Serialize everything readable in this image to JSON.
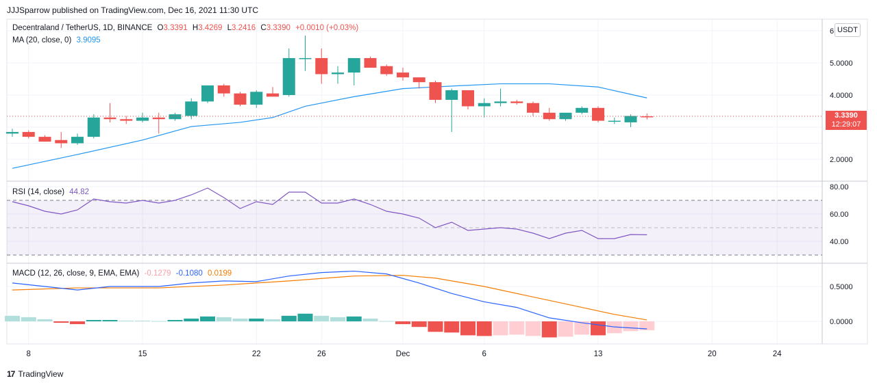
{
  "header": {
    "published": "JJJSparrow published on TradingView.com, Dec 16, 2021 11:30 UTC"
  },
  "footer": {
    "brand": "TradingView",
    "logo_glyph": "17"
  },
  "legend_main": {
    "symbol": "Decentraland / TetherUS, 1D, BINANCE",
    "o_label": "O",
    "o_val": "3.3391",
    "h_label": "H",
    "h_val": "3.4269",
    "l_label": "L",
    "l_val": "3.2416",
    "c_label": "C",
    "c_val": "3.3390",
    "change": "+0.0010 (+0.03%)",
    "ma_label": "MA (20, close, 0)",
    "ma_val": "3.9095"
  },
  "legend_rsi": {
    "label": "RSI (14, close)",
    "value": "44.82"
  },
  "legend_macd": {
    "label": "MACD (12, 26, close, 9, EMA, EMA)",
    "hist": "-0.1279",
    "macd": "-0.1080",
    "signal": "0.0199"
  },
  "currency": "USDT",
  "price_tag": {
    "price": "3.3390",
    "countdown": "12:29:07"
  },
  "colors": {
    "up": "#26a69a",
    "down": "#ef5350",
    "ma": "#2196f3",
    "rsi": "#7e57c2",
    "signal": "#f57c00",
    "hist_up_strong": "#26a69a",
    "hist_up_weak": "#b2dfdb",
    "hist_down_strong": "#ef5350",
    "hist_down_weak": "#ffcdd2"
  },
  "chart_data": [
    {
      "type": "candlestick",
      "series_name": "Decentraland / TetherUS",
      "x_labels": [
        "8",
        "15",
        "22",
        "26",
        "Dec",
        "6",
        "13",
        "20",
        "24"
      ],
      "x_label_days": [
        8,
        15,
        22,
        26,
        31,
        36,
        43,
        50,
        54
      ],
      "y_ticks": [
        2.0,
        4.0,
        5.0,
        6.0
      ],
      "y_tick_labels": [
        "2.0000",
        "4.0000",
        "5.0000",
        "6"
      ],
      "candles": [
        {
          "d": 7,
          "o": 2.8,
          "h": 2.95,
          "l": 2.7,
          "c": 2.85
        },
        {
          "d": 8,
          "o": 2.85,
          "h": 2.9,
          "l": 2.65,
          "c": 2.7
        },
        {
          "d": 9,
          "o": 2.7,
          "h": 2.75,
          "l": 2.55,
          "c": 2.55
        },
        {
          "d": 10,
          "o": 2.6,
          "h": 2.85,
          "l": 2.35,
          "c": 2.5
        },
        {
          "d": 11,
          "o": 2.5,
          "h": 2.8,
          "l": 2.45,
          "c": 2.7
        },
        {
          "d": 12,
          "o": 2.7,
          "h": 3.4,
          "l": 2.65,
          "c": 3.3
        },
        {
          "d": 13,
          "o": 3.3,
          "h": 3.75,
          "l": 3.15,
          "c": 3.25
        },
        {
          "d": 14,
          "o": 3.25,
          "h": 3.35,
          "l": 3.1,
          "c": 3.2
        },
        {
          "d": 15,
          "o": 3.2,
          "h": 3.45,
          "l": 3.15,
          "c": 3.3
        },
        {
          "d": 16,
          "o": 3.3,
          "h": 3.45,
          "l": 2.8,
          "c": 3.25
        },
        {
          "d": 17,
          "o": 3.25,
          "h": 3.45,
          "l": 3.2,
          "c": 3.4
        },
        {
          "d": 18,
          "o": 3.35,
          "h": 3.9,
          "l": 3.25,
          "c": 3.8
        },
        {
          "d": 19,
          "o": 3.8,
          "h": 4.3,
          "l": 3.75,
          "c": 4.3
        },
        {
          "d": 20,
          "o": 4.3,
          "h": 4.35,
          "l": 3.95,
          "c": 4.05
        },
        {
          "d": 21,
          "o": 4.05,
          "h": 4.1,
          "l": 3.65,
          "c": 3.7
        },
        {
          "d": 22,
          "o": 3.7,
          "h": 4.15,
          "l": 3.6,
          "c": 4.1
        },
        {
          "d": 23,
          "o": 4.05,
          "h": 4.25,
          "l": 3.95,
          "c": 3.95
        },
        {
          "d": 24,
          "o": 4.0,
          "h": 5.45,
          "l": 3.95,
          "c": 5.15
        },
        {
          "d": 25,
          "o": 5.15,
          "h": 5.85,
          "l": 4.75,
          "c": 5.15
        },
        {
          "d": 26,
          "o": 5.15,
          "h": 5.45,
          "l": 4.35,
          "c": 4.65
        },
        {
          "d": 27,
          "o": 4.65,
          "h": 4.9,
          "l": 4.35,
          "c": 4.7
        },
        {
          "d": 28,
          "o": 4.7,
          "h": 5.15,
          "l": 4.3,
          "c": 5.15
        },
        {
          "d": 29,
          "o": 5.15,
          "h": 5.2,
          "l": 4.85,
          "c": 4.85
        },
        {
          "d": 30,
          "o": 4.9,
          "h": 4.95,
          "l": 4.6,
          "c": 4.65
        },
        {
          "d": 31,
          "o": 4.7,
          "h": 4.85,
          "l": 4.45,
          "c": 4.55
        },
        {
          "d": 32,
          "o": 4.55,
          "h": 4.55,
          "l": 4.2,
          "c": 4.4
        },
        {
          "d": 33,
          "o": 4.4,
          "h": 4.45,
          "l": 3.75,
          "c": 3.85
        },
        {
          "d": 34,
          "o": 3.85,
          "h": 4.2,
          "l": 2.85,
          "c": 4.15
        },
        {
          "d": 35,
          "o": 4.15,
          "h": 4.15,
          "l": 3.55,
          "c": 3.65
        },
        {
          "d": 36,
          "o": 3.65,
          "h": 3.9,
          "l": 3.3,
          "c": 3.75
        },
        {
          "d": 37,
          "o": 3.75,
          "h": 4.2,
          "l": 3.65,
          "c": 3.8
        },
        {
          "d": 38,
          "o": 3.8,
          "h": 3.85,
          "l": 3.7,
          "c": 3.75
        },
        {
          "d": 39,
          "o": 3.75,
          "h": 3.8,
          "l": 3.35,
          "c": 3.45
        },
        {
          "d": 40,
          "o": 3.45,
          "h": 3.6,
          "l": 3.2,
          "c": 3.25
        },
        {
          "d": 41,
          "o": 3.25,
          "h": 3.45,
          "l": 3.2,
          "c": 3.45
        },
        {
          "d": 42,
          "o": 3.45,
          "h": 3.65,
          "l": 3.4,
          "c": 3.6
        },
        {
          "d": 43,
          "o": 3.6,
          "h": 3.65,
          "l": 3.15,
          "c": 3.2
        },
        {
          "d": 44,
          "o": 3.2,
          "h": 3.3,
          "l": 3.1,
          "c": 3.2
        },
        {
          "d": 45,
          "o": 3.15,
          "h": 3.4,
          "l": 3.0,
          "c": 3.35
        },
        {
          "d": 46,
          "o": 3.3391,
          "h": 3.4269,
          "l": 3.2416,
          "c": 3.339
        }
      ],
      "ma20": [
        {
          "d": 7,
          "v": 1.72
        },
        {
          "d": 11,
          "v": 2.15
        },
        {
          "d": 15,
          "v": 2.6
        },
        {
          "d": 18,
          "v": 3.02
        },
        {
          "d": 21,
          "v": 3.15
        },
        {
          "d": 23,
          "v": 3.3
        },
        {
          "d": 25,
          "v": 3.65
        },
        {
          "d": 28,
          "v": 3.95
        },
        {
          "d": 31,
          "v": 4.2
        },
        {
          "d": 34,
          "v": 4.28
        },
        {
          "d": 37,
          "v": 4.35
        },
        {
          "d": 40,
          "v": 4.35
        },
        {
          "d": 43,
          "v": 4.25
        },
        {
          "d": 46,
          "v": 3.91
        }
      ],
      "last_price": 3.339
    },
    {
      "type": "line",
      "series_name": "RSI (14, close)",
      "y_ticks": [
        40.0,
        60.0,
        80.0
      ],
      "y_tick_labels": [
        "40.00",
        "60.00",
        "80.00"
      ],
      "bands": [
        30,
        50,
        70
      ],
      "values": [
        {
          "d": 7,
          "v": 69
        },
        {
          "d": 8,
          "v": 66
        },
        {
          "d": 9,
          "v": 62
        },
        {
          "d": 10,
          "v": 60
        },
        {
          "d": 11,
          "v": 63
        },
        {
          "d": 12,
          "v": 71
        },
        {
          "d": 13,
          "v": 69
        },
        {
          "d": 14,
          "v": 68
        },
        {
          "d": 15,
          "v": 70
        },
        {
          "d": 16,
          "v": 68
        },
        {
          "d": 17,
          "v": 70
        },
        {
          "d": 18,
          "v": 74
        },
        {
          "d": 19,
          "v": 79
        },
        {
          "d": 20,
          "v": 72
        },
        {
          "d": 21,
          "v": 64
        },
        {
          "d": 22,
          "v": 69
        },
        {
          "d": 23,
          "v": 67
        },
        {
          "d": 24,
          "v": 76
        },
        {
          "d": 25,
          "v": 76
        },
        {
          "d": 26,
          "v": 68
        },
        {
          "d": 27,
          "v": 68
        },
        {
          "d": 28,
          "v": 71
        },
        {
          "d": 29,
          "v": 67
        },
        {
          "d": 30,
          "v": 62
        },
        {
          "d": 31,
          "v": 60
        },
        {
          "d": 32,
          "v": 57
        },
        {
          "d": 33,
          "v": 50
        },
        {
          "d": 34,
          "v": 54
        },
        {
          "d": 35,
          "v": 48
        },
        {
          "d": 36,
          "v": 49
        },
        {
          "d": 37,
          "v": 50
        },
        {
          "d": 38,
          "v": 49
        },
        {
          "d": 39,
          "v": 46
        },
        {
          "d": 40,
          "v": 42
        },
        {
          "d": 41,
          "v": 46
        },
        {
          "d": 42,
          "v": 48
        },
        {
          "d": 43,
          "v": 42
        },
        {
          "d": 44,
          "v": 42
        },
        {
          "d": 45,
          "v": 45
        },
        {
          "d": 46,
          "v": 44.82
        }
      ]
    },
    {
      "type": "bar+line",
      "series_name": "MACD (12, 26, close, 9, EMA, EMA)",
      "y_ticks": [
        0.0,
        0.5
      ],
      "y_tick_labels": [
        "0.0000",
        "0.5000"
      ],
      "macd": [
        {
          "d": 7,
          "v": 0.55
        },
        {
          "d": 9,
          "v": 0.5
        },
        {
          "d": 11,
          "v": 0.45
        },
        {
          "d": 13,
          "v": 0.5
        },
        {
          "d": 16,
          "v": 0.5
        },
        {
          "d": 18,
          "v": 0.55
        },
        {
          "d": 20,
          "v": 0.58
        },
        {
          "d": 22,
          "v": 0.57
        },
        {
          "d": 24,
          "v": 0.65
        },
        {
          "d": 26,
          "v": 0.7
        },
        {
          "d": 28,
          "v": 0.72
        },
        {
          "d": 30,
          "v": 0.68
        },
        {
          "d": 32,
          "v": 0.55
        },
        {
          "d": 34,
          "v": 0.4
        },
        {
          "d": 36,
          "v": 0.28
        },
        {
          "d": 38,
          "v": 0.2
        },
        {
          "d": 40,
          "v": 0.05
        },
        {
          "d": 42,
          "v": -0.02
        },
        {
          "d": 44,
          "v": -0.08
        },
        {
          "d": 46,
          "v": -0.108
        }
      ],
      "signal": [
        {
          "d": 7,
          "v": 0.45
        },
        {
          "d": 11,
          "v": 0.48
        },
        {
          "d": 16,
          "v": 0.48
        },
        {
          "d": 20,
          "v": 0.52
        },
        {
          "d": 24,
          "v": 0.58
        },
        {
          "d": 28,
          "v": 0.65
        },
        {
          "d": 31,
          "v": 0.66
        },
        {
          "d": 33,
          "v": 0.62
        },
        {
          "d": 36,
          "v": 0.5
        },
        {
          "d": 39,
          "v": 0.35
        },
        {
          "d": 42,
          "v": 0.2
        },
        {
          "d": 44,
          "v": 0.1
        },
        {
          "d": 46,
          "v": 0.0199
        }
      ],
      "histogram": [
        {
          "d": 7,
          "v": 0.08,
          "s": "weak"
        },
        {
          "d": 8,
          "v": 0.06,
          "s": "weak"
        },
        {
          "d": 9,
          "v": 0.03,
          "s": "weak"
        },
        {
          "d": 10,
          "v": -0.02,
          "s": "strong"
        },
        {
          "d": 11,
          "v": -0.04,
          "s": "strong"
        },
        {
          "d": 12,
          "v": 0.02,
          "s": "strong"
        },
        {
          "d": 13,
          "v": 0.02,
          "s": "strong"
        },
        {
          "d": 14,
          "v": 0.01,
          "s": "weak"
        },
        {
          "d": 15,
          "v": 0.01,
          "s": "weak"
        },
        {
          "d": 16,
          "v": 0.005,
          "s": "weak"
        },
        {
          "d": 17,
          "v": 0.02,
          "s": "strong"
        },
        {
          "d": 18,
          "v": 0.04,
          "s": "strong"
        },
        {
          "d": 19,
          "v": 0.07,
          "s": "strong"
        },
        {
          "d": 20,
          "v": 0.06,
          "s": "weak"
        },
        {
          "d": 21,
          "v": 0.04,
          "s": "weak"
        },
        {
          "d": 22,
          "v": 0.04,
          "s": "strong"
        },
        {
          "d": 23,
          "v": 0.03,
          "s": "weak"
        },
        {
          "d": 24,
          "v": 0.08,
          "s": "strong"
        },
        {
          "d": 25,
          "v": 0.11,
          "s": "strong"
        },
        {
          "d": 26,
          "v": 0.08,
          "s": "weak"
        },
        {
          "d": 27,
          "v": 0.06,
          "s": "weak"
        },
        {
          "d": 28,
          "v": 0.07,
          "s": "strong"
        },
        {
          "d": 29,
          "v": 0.04,
          "s": "weak"
        },
        {
          "d": 30,
          "v": 0.005,
          "s": "weak"
        },
        {
          "d": 31,
          "v": -0.04,
          "s": "strong"
        },
        {
          "d": 32,
          "v": -0.08,
          "s": "strong"
        },
        {
          "d": 33,
          "v": -0.15,
          "s": "strong"
        },
        {
          "d": 34,
          "v": -0.16,
          "s": "strong"
        },
        {
          "d": 35,
          "v": -0.2,
          "s": "strong"
        },
        {
          "d": 36,
          "v": -0.21,
          "s": "strong"
        },
        {
          "d": 37,
          "v": -0.2,
          "s": "weak"
        },
        {
          "d": 38,
          "v": -0.19,
          "s": "weak"
        },
        {
          "d": 39,
          "v": -0.21,
          "s": "weak"
        },
        {
          "d": 40,
          "v": -0.23,
          "s": "strong"
        },
        {
          "d": 41,
          "v": -0.22,
          "s": "weak"
        },
        {
          "d": 42,
          "v": -0.19,
          "s": "weak"
        },
        {
          "d": 43,
          "v": -0.2,
          "s": "strong"
        },
        {
          "d": 44,
          "v": -0.17,
          "s": "weak"
        },
        {
          "d": 45,
          "v": -0.14,
          "s": "weak"
        },
        {
          "d": 46,
          "v": -0.1279,
          "s": "weak"
        }
      ]
    }
  ]
}
